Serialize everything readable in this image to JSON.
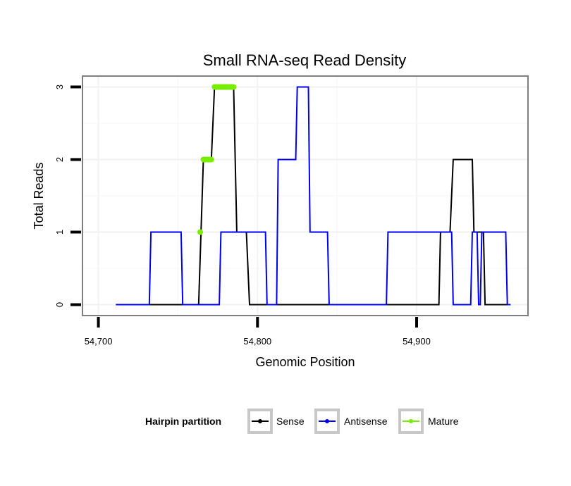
{
  "chart_data": {
    "type": "line",
    "title": "Small RNA-seq Read Density",
    "xlabel": "Genomic Position",
    "ylabel": "Total Reads",
    "xlim": [
      54690,
      54970
    ],
    "ylim": [
      -0.15,
      3.15
    ],
    "x_ticks": [
      54700,
      54800,
      54900
    ],
    "x_tick_labels": [
      "54,700",
      "54,800",
      "54,900"
    ],
    "y_ticks": [
      0,
      1,
      2,
      3
    ],
    "y_tick_labels": [
      "0",
      "1",
      "2",
      "3"
    ],
    "grid": true,
    "legend": {
      "title": "Hairpin partition",
      "position": "bottom",
      "entries": [
        "Sense",
        "Antisense",
        "Mature"
      ]
    },
    "series": [
      {
        "name": "Sense",
        "color": "#000000",
        "points": [
          [
            54711,
            0
          ],
          [
            54763,
            0
          ],
          [
            54766,
            2
          ],
          [
            54771,
            2
          ],
          [
            54773,
            3
          ],
          [
            54785,
            3
          ],
          [
            54787,
            1
          ],
          [
            54793,
            1
          ],
          [
            54795,
            0
          ],
          [
            54914,
            0
          ],
          [
            54915,
            1
          ],
          [
            54921,
            1
          ],
          [
            54923,
            2
          ],
          [
            54935,
            2
          ],
          [
            54936,
            1
          ],
          [
            54942,
            1
          ],
          [
            54943,
            0
          ],
          [
            54959,
            0
          ]
        ]
      },
      {
        "name": "Antisense",
        "color": "#0000ee",
        "points": [
          [
            54711,
            0
          ],
          [
            54732,
            0
          ],
          [
            54733,
            1
          ],
          [
            54752,
            1
          ],
          [
            54753,
            0
          ],
          [
            54776,
            0
          ],
          [
            54777,
            1
          ],
          [
            54805,
            1
          ],
          [
            54806,
            0
          ],
          [
            54812,
            0
          ],
          [
            54813,
            2
          ],
          [
            54824,
            2
          ],
          [
            54825,
            3
          ],
          [
            54832,
            3
          ],
          [
            54833,
            1
          ],
          [
            54844,
            1
          ],
          [
            54845,
            0
          ],
          [
            54881,
            0
          ],
          [
            54882,
            1
          ],
          [
            54922,
            1
          ],
          [
            54923,
            0
          ],
          [
            54934,
            0
          ],
          [
            54935,
            1
          ],
          [
            54938,
            1
          ],
          [
            54939,
            0
          ],
          [
            54940,
            0
          ],
          [
            54941,
            1
          ],
          [
            54956,
            1
          ],
          [
            54957,
            0
          ],
          [
            54959,
            0
          ]
        ]
      },
      {
        "name": "Mature",
        "color": "#77ee00",
        "segments": [
          {
            "x": [
              54764,
              54764
            ],
            "y": 1
          },
          {
            "x": [
              54766,
              54771
            ],
            "y": 2
          },
          {
            "x": [
              54773,
              54785
            ],
            "y": 3
          }
        ]
      }
    ]
  }
}
